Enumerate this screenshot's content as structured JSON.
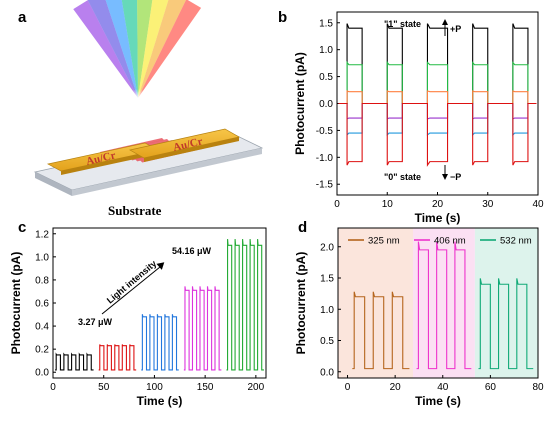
{
  "panel_a": {
    "label": "a",
    "electrode_left": "Au/Cr",
    "electrode_right": "Au/Cr",
    "substrate_label": "Substrate"
  },
  "chart_data": [
    {
      "panel": "b",
      "type": "line",
      "xlabel": "Time (s)",
      "ylabel": "Photocurrent (pA)",
      "xlim": [
        0,
        40
      ],
      "ylim": [
        -1.7,
        1.7
      ],
      "xticks": [
        0,
        10,
        20,
        30,
        40
      ],
      "yticks": [
        -1.5,
        -1.0,
        -0.5,
        0.0,
        0.5,
        1.0,
        1.5
      ],
      "on_intervals": [
        [
          2,
          5
        ],
        [
          10,
          13
        ],
        [
          18,
          22
        ],
        [
          27,
          30
        ],
        [
          35,
          38
        ]
      ],
      "series": [
        {
          "color": "#000000",
          "on_value": 1.4,
          "off_value": 0.0
        },
        {
          "color": "#22bb44",
          "on_value": 0.72,
          "off_value": 0.0
        },
        {
          "color": "#ff8040",
          "on_value": 0.22,
          "off_value": 0.0
        },
        {
          "color": "#9933cc",
          "on_value": -0.27,
          "off_value": 0.0
        },
        {
          "color": "#2299dd",
          "on_value": -0.55,
          "off_value": 0.0
        },
        {
          "color": "#dd1111",
          "on_value": -1.08,
          "off_value": 0.0
        }
      ],
      "annotations": {
        "state_one": "\"1\" state",
        "plus_p": "+P",
        "state_zero": "\"0\" state",
        "minus_p": "−P"
      },
      "grid": false
    },
    {
      "panel": "c",
      "type": "line",
      "xlabel": "Time (s)",
      "ylabel": "Photocurrent (pA)",
      "xlim": [
        0,
        210
      ],
      "ylim": [
        -0.05,
        1.25
      ],
      "xticks": [
        0,
        50,
        100,
        150,
        200
      ],
      "yticks": [
        0.0,
        0.2,
        0.4,
        0.6,
        0.8,
        1.0,
        1.2
      ],
      "segments": [
        {
          "color": "#000000",
          "x_start": 2,
          "x_end": 40,
          "on_value": 0.15,
          "baseline": 0.02
        },
        {
          "color": "#dd1111",
          "x_start": 45,
          "x_end": 82,
          "on_value": 0.23,
          "baseline": 0.02
        },
        {
          "color": "#2277dd",
          "x_start": 87,
          "x_end": 124,
          "on_value": 0.48,
          "baseline": 0.02
        },
        {
          "color": "#dd33dd",
          "x_start": 129,
          "x_end": 166,
          "on_value": 0.71,
          "baseline": 0.02
        },
        {
          "color": "#22aa33",
          "x_start": 171,
          "x_end": 208,
          "on_value": 1.1,
          "baseline": 0.02
        }
      ],
      "annotations": {
        "low_power": "3.27 μW",
        "high_power": "54.16 μW",
        "arrow_label": "Light intensity"
      },
      "grid": false
    },
    {
      "panel": "d",
      "type": "line",
      "xlabel": "Time (s)",
      "ylabel": "Photocurrent (pA)",
      "xlim": [
        -4,
        80
      ],
      "ylim": [
        -0.1,
        2.3
      ],
      "xticks": [
        0,
        20,
        40,
        60,
        80
      ],
      "yticks": [
        0.0,
        0.5,
        1.0,
        1.5,
        2.0
      ],
      "series": [
        {
          "name": "325 nm",
          "color": "#b5651d",
          "x_start": 2,
          "x_end": 26,
          "on_value": 1.2,
          "baseline": 0.05,
          "bg": "#fbe5dc"
        },
        {
          "name": "406 nm",
          "color": "#ee33cc",
          "x_start": 29,
          "x_end": 52,
          "on_value": 1.95,
          "baseline": 0.05,
          "bg": "#fbe0f3"
        },
        {
          "name": "532 nm",
          "color": "#11aa77",
          "x_start": 55,
          "x_end": 78,
          "on_value": 1.4,
          "baseline": 0.05,
          "bg": "#ddf3ec"
        }
      ],
      "legend": "top",
      "grid": false
    }
  ],
  "labels": {
    "b": "b",
    "c": "c",
    "d": "d"
  }
}
